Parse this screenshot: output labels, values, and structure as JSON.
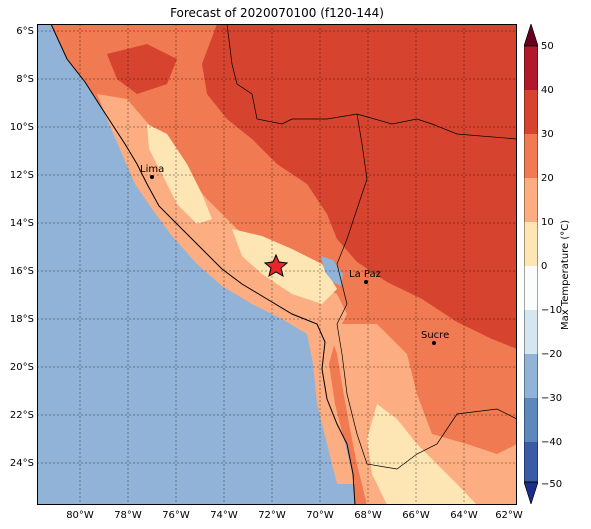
{
  "title": "Forecast of 2020070100 (f120-144)",
  "map": {
    "lon_range": [
      -82,
      -62
    ],
    "lat_range": [
      -25.8,
      -5.8
    ],
    "grid": true,
    "lat_ticks": [
      "6°S",
      "8°S",
      "10°S",
      "12°S",
      "14°S",
      "16°S",
      "18°S",
      "20°S",
      "22°S",
      "24°S"
    ],
    "lon_ticks": [
      "80°W",
      "78°W",
      "76°W",
      "74°W",
      "72°W",
      "70°W",
      "68°W",
      "66°W",
      "64°W",
      "62°W"
    ],
    "ocean_color": "#91b3d7",
    "cities": [
      {
        "name": "Lima",
        "lon": -77.0,
        "lat": -12.05
      },
      {
        "name": "La Paz",
        "lon": -68.1,
        "lat": -16.5
      },
      {
        "name": "Sucre",
        "lon": -65.3,
        "lat": -19.0
      }
    ],
    "marker": {
      "icon": "star-icon",
      "lon": -71.9,
      "lat": -15.8,
      "color": "#e8252a"
    }
  },
  "colorbar": {
    "label": "Max Temperature (°C)",
    "ticks": [
      "50",
      "40",
      "30",
      "20",
      "10",
      "0",
      "−10",
      "−20",
      "−30",
      "−40",
      "−50"
    ],
    "colors": [
      "#67001f",
      "#b2182b",
      "#d6432f",
      "#f07a51",
      "#fcad82",
      "#fde5b4",
      "#fbfdfd",
      "#d4e6f0",
      "#91b3d7",
      "#5e88bc",
      "#3a5ba5",
      "#1c2e8a"
    ]
  }
}
